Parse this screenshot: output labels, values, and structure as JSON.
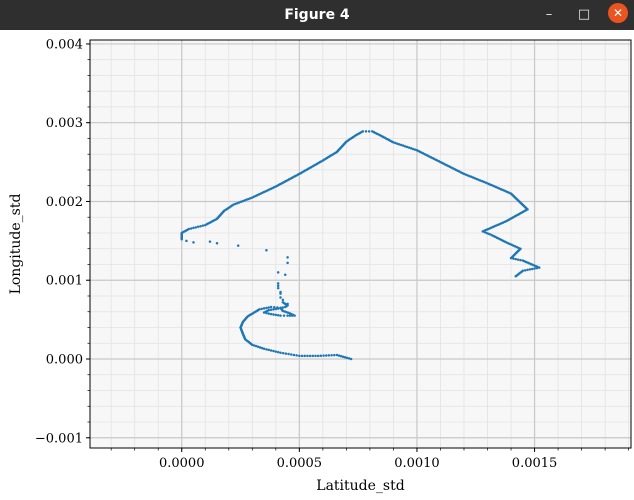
{
  "window": {
    "title": "Figure 4",
    "buttons": {
      "minimize": "–",
      "maximize": "□",
      "close": "✕"
    }
  },
  "chart_data": {
    "type": "scatter",
    "title": "",
    "xlabel": "Latitude_std",
    "ylabel": "Longitude_std",
    "xlim": [
      -0.00039,
      0.00191
    ],
    "ylim": [
      -0.00113,
      0.00405
    ],
    "xticks": [
      {
        "value": 0.0,
        "label": "0.0000"
      },
      {
        "value": 0.0005,
        "label": "0.0005"
      },
      {
        "value": 0.001,
        "label": "0.0010"
      },
      {
        "value": 0.0015,
        "label": "0.0015"
      }
    ],
    "yticks": [
      {
        "value": -0.001,
        "label": "−0.001"
      },
      {
        "value": 0.0,
        "label": "0.000"
      },
      {
        "value": 0.001,
        "label": "0.001"
      },
      {
        "value": 0.002,
        "label": "0.002"
      },
      {
        "value": 0.003,
        "label": "0.003"
      },
      {
        "value": 0.004,
        "label": "0.004"
      }
    ],
    "grid": true,
    "minor_grid": true,
    "color": "#1f77b4",
    "series": [
      {
        "path": [
          [
            0.00072,
            0.0
          ],
          [
            0.00066,
            5e-05
          ],
          [
            0.00058,
            4e-05
          ],
          [
            0.0005,
            4e-05
          ],
          [
            0.00042,
            8e-05
          ],
          [
            0.00035,
            0.00013
          ],
          [
            0.0003,
            0.00018
          ],
          [
            0.00027,
            0.00025
          ],
          [
            0.00026,
            0.00032
          ],
          [
            0.00025,
            0.0004
          ],
          [
            0.00026,
            0.00047
          ],
          [
            0.00028,
            0.00054
          ],
          [
            0.00033,
            0.00063
          ],
          [
            0.00038,
            0.00066
          ],
          [
            0.00042,
            0.00065
          ],
          [
            0.00043,
            0.00061
          ],
          [
            0.00046,
            0.00058
          ],
          [
            0.00048,
            0.00055
          ],
          [
            0.00045,
            0.00055
          ],
          [
            0.00042,
            0.00055
          ],
          [
            0.00038,
            0.00057
          ],
          [
            0.00035,
            0.00059
          ],
          [
            0.00037,
            0.00062
          ],
          [
            0.00041,
            0.00064
          ],
          [
            0.00044,
            0.00066
          ],
          [
            0.00045,
            0.00068
          ],
          [
            0.00043,
            0.00072
          ]
        ],
        "step": 1.2e-05
      },
      {
        "path": [
          [
            0.0,
            0.00152
          ],
          [
            0.0,
            0.0016
          ],
          [
            3e-05,
            0.00165
          ],
          [
            0.0001,
            0.0017
          ],
          [
            0.00015,
            0.00178
          ],
          [
            0.00018,
            0.00188
          ],
          [
            0.00022,
            0.00196
          ],
          [
            0.0003,
            0.00205
          ],
          [
            0.0004,
            0.00219
          ],
          [
            0.0005,
            0.00235
          ],
          [
            0.0006,
            0.00252
          ],
          [
            0.00066,
            0.00263
          ],
          [
            0.0007,
            0.00276
          ],
          [
            0.00074,
            0.00284
          ],
          [
            0.00077,
            0.00289
          ],
          [
            0.00081,
            0.00289
          ],
          [
            0.00085,
            0.00283
          ],
          [
            0.0009,
            0.00275
          ],
          [
            0.001,
            0.00265
          ],
          [
            0.0011,
            0.0025
          ],
          [
            0.0012,
            0.00235
          ],
          [
            0.0013,
            0.00223
          ],
          [
            0.0014,
            0.0021
          ],
          [
            0.00147,
            0.0019
          ],
          [
            0.00138,
            0.00175
          ],
          [
            0.00128,
            0.00162
          ],
          [
            0.00132,
            0.00157
          ],
          [
            0.00138,
            0.00148
          ],
          [
            0.00144,
            0.0014
          ],
          [
            0.0014,
            0.00128
          ],
          [
            0.00145,
            0.00125
          ],
          [
            0.00152,
            0.00116
          ],
          [
            0.00145,
            0.00112
          ],
          [
            0.00142,
            0.00105
          ]
        ],
        "step": 1.2e-05
      }
    ],
    "points": [
      [
        2e-05,
        0.0015
      ],
      [
        5e-05,
        0.00148
      ],
      [
        0.00012,
        0.00149
      ],
      [
        0.00015,
        0.00147
      ],
      [
        0.00024,
        0.00144
      ],
      [
        0.00036,
        0.00138
      ],
      [
        0.00041,
        0.0011
      ],
      [
        0.00045,
        0.00129
      ],
      [
        0.00045,
        0.00122
      ],
      [
        0.00044,
        0.00107
      ],
      [
        0.00041,
        0.00096
      ],
      [
        0.00041,
        0.00093
      ],
      [
        0.00041,
        0.0009
      ],
      [
        0.00042,
        0.00085
      ],
      [
        0.00042,
        0.00083
      ],
      [
        0.00042,
        0.00078
      ],
      [
        0.00043,
        0.00075
      ],
      [
        0.00045,
        0.0007
      ]
    ]
  }
}
